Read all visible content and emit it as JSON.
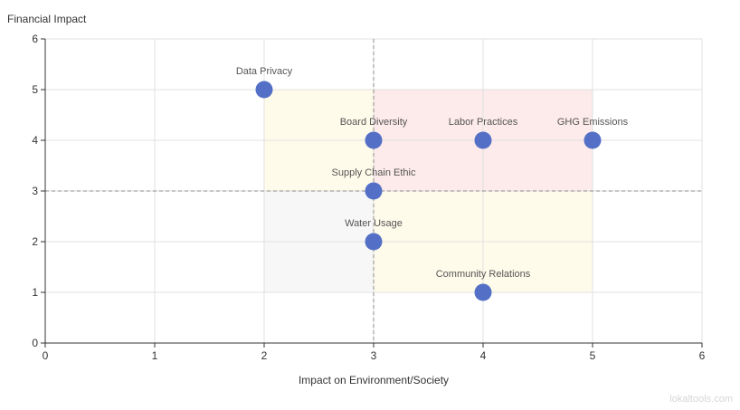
{
  "chart_data": {
    "type": "scatter",
    "title": "",
    "xlabel": "Impact on Environment/Society",
    "ylabel": "Financial Impact",
    "xlim": [
      0,
      6
    ],
    "ylim": [
      0,
      6
    ],
    "x_ticks": [
      0,
      1,
      2,
      3,
      4,
      5,
      6
    ],
    "y_ticks": [
      0,
      1,
      2,
      3,
      4,
      5,
      6
    ],
    "grid": true,
    "reference_lines": {
      "x": 3,
      "y": 3,
      "style": "dashed"
    },
    "regions": [
      {
        "x": [
          2,
          3
        ],
        "y": [
          3,
          5
        ],
        "color": "#fffbea"
      },
      {
        "x": [
          3,
          5
        ],
        "y": [
          3,
          5
        ],
        "color": "#fdeaea"
      },
      {
        "x": [
          2,
          3
        ],
        "y": [
          1,
          3
        ],
        "color": "#f7f7f7"
      },
      {
        "x": [
          3,
          5
        ],
        "y": [
          1,
          3
        ],
        "color": "#fffbea"
      }
    ],
    "marker_color": "#5470c6",
    "points": [
      {
        "label": "Data Privacy",
        "x": 2,
        "y": 5
      },
      {
        "label": "Board Diversity",
        "x": 3,
        "y": 4
      },
      {
        "label": "Labor Practices",
        "x": 4,
        "y": 4
      },
      {
        "label": "GHG Emissions",
        "x": 5,
        "y": 4
      },
      {
        "label": "Supply Chain Ethic",
        "x": 3,
        "y": 3
      },
      {
        "label": "Water Usage",
        "x": 3,
        "y": 2
      },
      {
        "label": "Community Relations",
        "x": 4,
        "y": 1
      }
    ]
  },
  "watermark": "lokaltools.com"
}
